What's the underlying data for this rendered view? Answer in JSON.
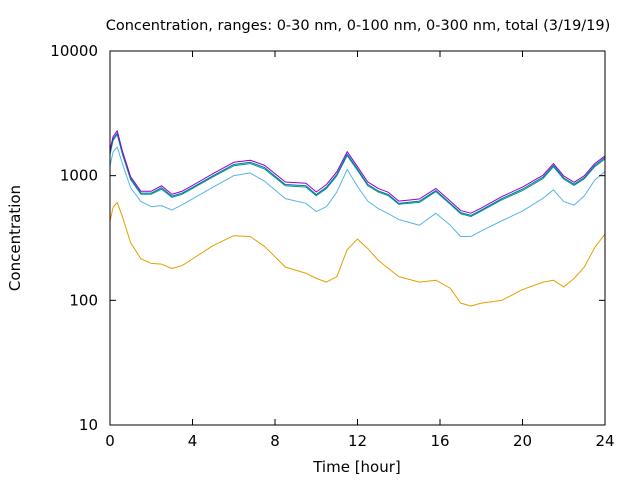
{
  "chart_data": {
    "type": "line",
    "title": "Concentration, ranges: 0-30 nm, 0-100 nm, 0-300 nm, total (3/19/19)",
    "xlabel": "Time [hour]",
    "ylabel": "Concentration",
    "xlim": [
      0,
      24
    ],
    "ylim": [
      10,
      10000
    ],
    "yscale": "log",
    "grid": false,
    "legend": "none",
    "x_ticks": [
      0,
      4,
      8,
      12,
      16,
      20,
      24
    ],
    "x_tick_labels": [
      "0",
      "4",
      "8",
      "12",
      "16",
      "20",
      "24"
    ],
    "y_ticks": [
      10,
      100,
      1000,
      10000
    ],
    "y_tick_labels": [
      "10",
      "100",
      "1000",
      "10000"
    ],
    "series": [
      {
        "color": "#e69f00",
        "x": [
          0,
          0.15,
          0.35,
          0.6,
          1.0,
          1.5,
          2.0,
          2.5,
          3.0,
          3.5,
          4.0,
          5.0,
          6.0,
          6.8,
          7.5,
          8.5,
          9.5,
          10.0,
          10.5,
          11.0,
          11.5,
          12.0,
          12.5,
          13.0,
          13.5,
          14.0,
          15.0,
          15.8,
          16.5,
          17.0,
          17.5,
          18.0,
          19.0,
          20.0,
          21.0,
          21.5,
          22.0,
          22.5,
          23.0,
          23.5,
          24.0
        ],
        "y": [
          430,
          560,
          610,
          470,
          290,
          215,
          198,
          195,
          180,
          190,
          215,
          275,
          330,
          325,
          270,
          185,
          165,
          150,
          140,
          155,
          255,
          310,
          260,
          210,
          180,
          155,
          140,
          145,
          125,
          95,
          90,
          95,
          100,
          122,
          140,
          145,
          128,
          150,
          185,
          265,
          340
        ]
      },
      {
        "color": "#56b4e9",
        "x": [
          0,
          0.15,
          0.35,
          0.6,
          1.0,
          1.5,
          2.0,
          2.5,
          3.0,
          3.5,
          4.0,
          5.0,
          6.0,
          6.8,
          7.5,
          8.5,
          9.5,
          10.0,
          10.5,
          11.0,
          11.5,
          12.0,
          12.5,
          13.0,
          13.5,
          14.0,
          15.0,
          15.8,
          16.5,
          17.0,
          17.5,
          18.0,
          19.0,
          20.0,
          21.0,
          21.5,
          22.0,
          22.5,
          23.0,
          23.5,
          24.0
        ],
        "y": [
          1200,
          1550,
          1700,
          1250,
          800,
          620,
          565,
          575,
          530,
          585,
          650,
          810,
          1000,
          1050,
          900,
          655,
          600,
          515,
          565,
          740,
          1120,
          820,
          625,
          545,
          495,
          445,
          400,
          500,
          400,
          325,
          325,
          360,
          435,
          520,
          660,
          770,
          620,
          580,
          690,
          920,
          1080
        ]
      },
      {
        "color": "#009e73",
        "x": [
          0,
          0.15,
          0.35,
          0.6,
          1.0,
          1.5,
          2.0,
          2.5,
          3.0,
          3.5,
          4.0,
          5.0,
          6.0,
          6.8,
          7.5,
          8.5,
          9.5,
          10.0,
          10.5,
          11.0,
          11.5,
          12.0,
          12.5,
          13.0,
          13.5,
          14.0,
          15.0,
          15.8,
          16.5,
          17.0,
          17.5,
          18.0,
          19.0,
          20.0,
          21.0,
          21.5,
          22.0,
          22.5,
          23.0,
          23.5,
          24.0
        ],
        "y": [
          1480,
          1920,
          2140,
          1490,
          930,
          710,
          710,
          780,
          670,
          710,
          790,
          980,
          1200,
          1250,
          1130,
          830,
          810,
          690,
          790,
          1000,
          1450,
          1100,
          830,
          740,
          690,
          590,
          610,
          745,
          590,
          495,
          470,
          520,
          640,
          760,
          950,
          1180,
          940,
          835,
          945,
          1180,
          1360
        ]
      },
      {
        "color": "#0072b2",
        "x": [
          0,
          0.15,
          0.35,
          0.6,
          1.0,
          1.5,
          2.0,
          2.5,
          3.0,
          3.5,
          4.0,
          5.0,
          6.0,
          6.8,
          7.5,
          8.5,
          9.5,
          10.0,
          10.5,
          11.0,
          11.5,
          12.0,
          12.5,
          13.0,
          13.5,
          14.0,
          15.0,
          15.8,
          16.5,
          17.0,
          17.5,
          18.0,
          19.0,
          20.0,
          21.0,
          21.5,
          22.0,
          22.5,
          23.0,
          23.5,
          24.0
        ],
        "y": [
          1520,
          1970,
          2190,
          1520,
          950,
          725,
          725,
          800,
          685,
          725,
          805,
          1000,
          1230,
          1280,
          1160,
          850,
          830,
          705,
          810,
          1025,
          1490,
          1130,
          850,
          755,
          705,
          600,
          625,
          760,
          600,
          505,
          480,
          530,
          655,
          780,
          975,
          1210,
          960,
          855,
          965,
          1210,
          1400
        ]
      },
      {
        "color": "#9400d3",
        "x": [
          0,
          0.15,
          0.35,
          0.6,
          1.0,
          1.5,
          2.0,
          2.5,
          3.0,
          3.5,
          4.0,
          5.0,
          6.0,
          6.8,
          7.5,
          8.5,
          9.5,
          10.0,
          10.5,
          11.0,
          11.5,
          12.0,
          12.5,
          13.0,
          13.5,
          14.0,
          15.0,
          15.8,
          16.5,
          17.0,
          17.5,
          18.0,
          19.0,
          20.0,
          21.0,
          21.5,
          22.0,
          22.5,
          23.0,
          23.5,
          24.0
        ],
        "y": [
          1600,
          2060,
          2290,
          1580,
          980,
          750,
          750,
          830,
          710,
          750,
          835,
          1040,
          1280,
          1330,
          1210,
          890,
          870,
          740,
          850,
          1075,
          1560,
          1180,
          890,
          790,
          735,
          625,
          650,
          790,
          625,
          525,
          500,
          550,
          680,
          810,
          1010,
          1250,
          995,
          885,
          1000,
          1250,
          1440
        ]
      }
    ]
  }
}
